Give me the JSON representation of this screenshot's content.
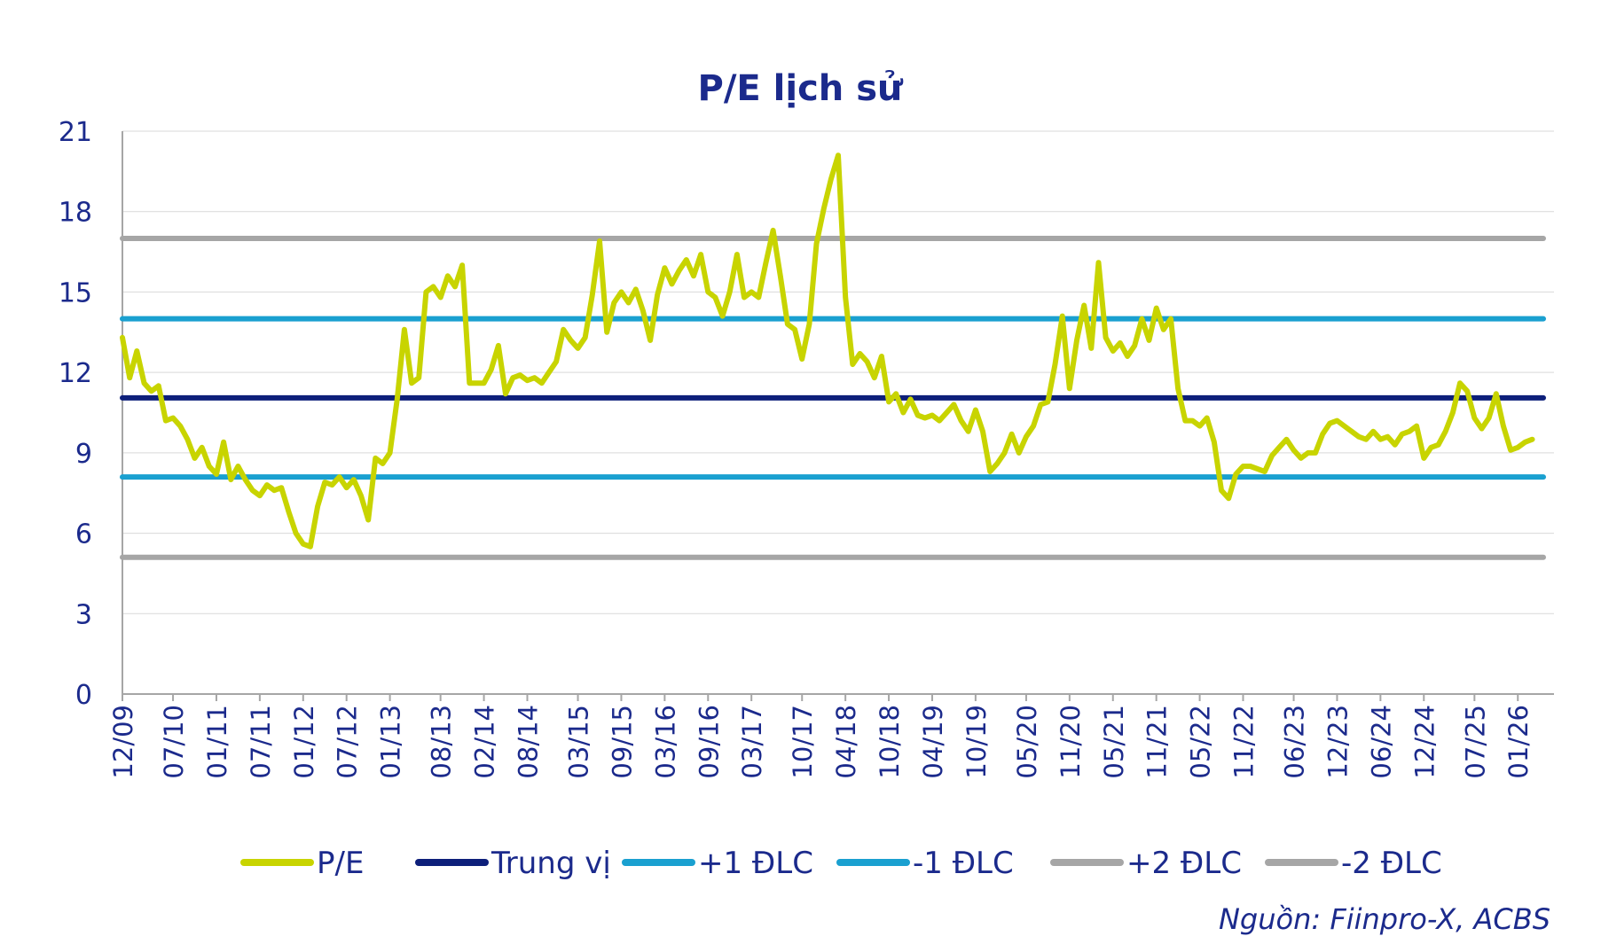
{
  "chart_data": {
    "type": "line",
    "title": "P/E lịch sử",
    "source": "Nguồn: Fiinpro-X, ACBS",
    "ylim": [
      0,
      21
    ],
    "yticks": [
      0,
      3,
      6,
      9,
      12,
      15,
      18,
      21
    ],
    "xlim": [
      "2009-12",
      "2026-06"
    ],
    "xticks": [
      "12/09",
      "07/10",
      "01/11",
      "07/11",
      "01/12",
      "07/12",
      "01/13",
      "08/13",
      "02/14",
      "08/14",
      "03/15",
      "09/15",
      "03/16",
      "09/16",
      "03/17",
      "10/17",
      "04/18",
      "10/18",
      "04/19",
      "10/19",
      "05/20",
      "11/20",
      "05/21",
      "11/21",
      "05/22",
      "11/22",
      "06/23",
      "12/23",
      "06/24",
      "12/24",
      "07/25",
      "01/26"
    ],
    "grid": "horizontal",
    "legend_position": "bottom",
    "series": [
      {
        "name": "P/E",
        "color": "#c8d400",
        "points": [
          [
            "2009-12",
            13.3
          ],
          [
            "2010-01",
            11.8
          ],
          [
            "2010-02",
            12.8
          ],
          [
            "2010-03",
            11.6
          ],
          [
            "2010-04",
            11.3
          ],
          [
            "2010-05",
            11.5
          ],
          [
            "2010-06",
            10.2
          ],
          [
            "2010-07",
            10.3
          ],
          [
            "2010-08",
            10.0
          ],
          [
            "2010-09",
            9.5
          ],
          [
            "2010-10",
            8.8
          ],
          [
            "2010-11",
            9.2
          ],
          [
            "2010-12",
            8.5
          ],
          [
            "2011-01",
            8.2
          ],
          [
            "2011-02",
            9.4
          ],
          [
            "2011-03",
            8.0
          ],
          [
            "2011-04",
            8.5
          ],
          [
            "2011-05",
            8.0
          ],
          [
            "2011-06",
            7.6
          ],
          [
            "2011-07",
            7.4
          ],
          [
            "2011-08",
            7.8
          ],
          [
            "2011-09",
            7.6
          ],
          [
            "2011-10",
            7.7
          ],
          [
            "2011-11",
            6.8
          ],
          [
            "2011-12",
            6.0
          ],
          [
            "2012-01",
            5.6
          ],
          [
            "2012-02",
            5.5
          ],
          [
            "2012-03",
            7.0
          ],
          [
            "2012-04",
            7.9
          ],
          [
            "2012-05",
            7.8
          ],
          [
            "2012-06",
            8.1
          ],
          [
            "2012-07",
            7.7
          ],
          [
            "2012-08",
            8.0
          ],
          [
            "2012-09",
            7.4
          ],
          [
            "2012-10",
            6.5
          ],
          [
            "2012-11",
            8.8
          ],
          [
            "2012-12",
            8.6
          ],
          [
            "2013-01",
            9.0
          ],
          [
            "2013-02",
            11.0
          ],
          [
            "2013-03",
            13.6
          ],
          [
            "2013-04",
            11.6
          ],
          [
            "2013-05",
            11.8
          ],
          [
            "2013-06",
            15.0
          ],
          [
            "2013-07",
            15.2
          ],
          [
            "2013-08",
            14.8
          ],
          [
            "2013-09",
            15.6
          ],
          [
            "2013-10",
            15.2
          ],
          [
            "2013-11",
            16.0
          ],
          [
            "2013-12",
            11.6
          ],
          [
            "2014-01",
            11.6
          ],
          [
            "2014-02",
            11.6
          ],
          [
            "2014-03",
            12.1
          ],
          [
            "2014-04",
            13.0
          ],
          [
            "2014-05",
            11.2
          ],
          [
            "2014-06",
            11.8
          ],
          [
            "2014-07",
            11.9
          ],
          [
            "2014-08",
            11.7
          ],
          [
            "2014-09",
            11.8
          ],
          [
            "2014-10",
            11.6
          ],
          [
            "2014-11",
            12.0
          ],
          [
            "2014-12",
            12.4
          ],
          [
            "2015-01",
            13.6
          ],
          [
            "2015-02",
            13.2
          ],
          [
            "2015-03",
            12.9
          ],
          [
            "2015-04",
            13.3
          ],
          [
            "2015-05",
            14.9
          ],
          [
            "2015-06",
            16.9
          ],
          [
            "2015-07",
            13.5
          ],
          [
            "2015-08",
            14.6
          ],
          [
            "2015-09",
            15.0
          ],
          [
            "2015-10",
            14.6
          ],
          [
            "2015-11",
            15.1
          ],
          [
            "2015-12",
            14.3
          ],
          [
            "2016-01",
            13.2
          ],
          [
            "2016-02",
            14.9
          ],
          [
            "2016-03",
            15.9
          ],
          [
            "2016-04",
            15.3
          ],
          [
            "2016-05",
            15.8
          ],
          [
            "2016-06",
            16.2
          ],
          [
            "2016-07",
            15.6
          ],
          [
            "2016-08",
            16.4
          ],
          [
            "2016-09",
            15.0
          ],
          [
            "2016-10",
            14.8
          ],
          [
            "2016-11",
            14.1
          ],
          [
            "2016-12",
            15.0
          ],
          [
            "2017-01",
            16.4
          ],
          [
            "2017-02",
            14.8
          ],
          [
            "2017-03",
            15.0
          ],
          [
            "2017-04",
            14.8
          ],
          [
            "2017-05",
            16.1
          ],
          [
            "2017-06",
            17.3
          ],
          [
            "2017-07",
            15.6
          ],
          [
            "2017-08",
            13.8
          ],
          [
            "2017-09",
            13.6
          ],
          [
            "2017-10",
            12.5
          ],
          [
            "2017-11",
            13.8
          ],
          [
            "2017-12",
            16.8
          ],
          [
            "2018-01",
            18.1
          ],
          [
            "2018-02",
            19.2
          ],
          [
            "2018-03",
            20.1
          ],
          [
            "2018-04",
            14.8
          ],
          [
            "2018-05",
            12.3
          ],
          [
            "2018-06",
            12.7
          ],
          [
            "2018-07",
            12.4
          ],
          [
            "2018-08",
            11.8
          ],
          [
            "2018-09",
            12.6
          ],
          [
            "2018-10",
            10.9
          ],
          [
            "2018-11",
            11.2
          ],
          [
            "2018-12",
            10.5
          ],
          [
            "2019-01",
            11.0
          ],
          [
            "2019-02",
            10.4
          ],
          [
            "2019-03",
            10.3
          ],
          [
            "2019-04",
            10.4
          ],
          [
            "2019-05",
            10.2
          ],
          [
            "2019-06",
            10.5
          ],
          [
            "2019-07",
            10.8
          ],
          [
            "2019-08",
            10.2
          ],
          [
            "2019-09",
            9.8
          ],
          [
            "2019-10",
            10.6
          ],
          [
            "2019-11",
            9.8
          ],
          [
            "2019-12",
            8.3
          ],
          [
            "2020-01",
            8.6
          ],
          [
            "2020-02",
            9.0
          ],
          [
            "2020-03",
            9.7
          ],
          [
            "2020-04",
            9.0
          ],
          [
            "2020-05",
            9.6
          ],
          [
            "2020-06",
            10.0
          ],
          [
            "2020-07",
            10.8
          ],
          [
            "2020-08",
            10.9
          ],
          [
            "2020-09",
            12.3
          ],
          [
            "2020-10",
            14.1
          ],
          [
            "2020-11",
            11.4
          ],
          [
            "2020-12",
            13.2
          ],
          [
            "2021-01",
            14.5
          ],
          [
            "2021-02",
            12.9
          ],
          [
            "2021-03",
            16.1
          ],
          [
            "2021-04",
            13.3
          ],
          [
            "2021-05",
            12.8
          ],
          [
            "2021-06",
            13.1
          ],
          [
            "2021-07",
            12.6
          ],
          [
            "2021-08",
            13.0
          ],
          [
            "2021-09",
            14.0
          ],
          [
            "2021-10",
            13.2
          ],
          [
            "2021-11",
            14.4
          ],
          [
            "2021-12",
            13.6
          ],
          [
            "2022-01",
            14.0
          ],
          [
            "2022-02",
            11.4
          ],
          [
            "2022-03",
            10.2
          ],
          [
            "2022-04",
            10.2
          ],
          [
            "2022-05",
            10.0
          ],
          [
            "2022-06",
            10.3
          ],
          [
            "2022-07",
            9.4
          ],
          [
            "2022-08",
            7.6
          ],
          [
            "2022-09",
            7.3
          ],
          [
            "2022-10",
            8.2
          ],
          [
            "2022-11",
            8.5
          ],
          [
            "2022-12",
            8.5
          ],
          [
            "2023-01",
            8.4
          ],
          [
            "2023-02",
            8.3
          ],
          [
            "2023-03",
            8.9
          ],
          [
            "2023-04",
            9.2
          ],
          [
            "2023-05",
            9.5
          ],
          [
            "2023-06",
            9.1
          ],
          [
            "2023-07",
            8.8
          ],
          [
            "2023-08",
            9.0
          ],
          [
            "2023-09",
            9.0
          ],
          [
            "2023-10",
            9.7
          ],
          [
            "2023-11",
            10.1
          ],
          [
            "2023-12",
            10.2
          ],
          [
            "2024-01",
            10.0
          ],
          [
            "2024-02",
            9.8
          ],
          [
            "2024-03",
            9.6
          ],
          [
            "2024-04",
            9.5
          ],
          [
            "2024-05",
            9.8
          ],
          [
            "2024-06",
            9.5
          ],
          [
            "2024-07",
            9.6
          ],
          [
            "2024-08",
            9.3
          ],
          [
            "2024-09",
            9.7
          ],
          [
            "2024-10",
            9.8
          ],
          [
            "2024-11",
            10.0
          ],
          [
            "2024-12",
            8.8
          ],
          [
            "2025-01",
            9.2
          ],
          [
            "2025-02",
            9.3
          ],
          [
            "2025-03",
            9.8
          ],
          [
            "2025-04",
            10.5
          ],
          [
            "2025-05",
            11.6
          ],
          [
            "2025-06",
            11.3
          ],
          [
            "2025-07",
            10.3
          ],
          [
            "2025-08",
            9.9
          ],
          [
            "2025-09",
            10.3
          ],
          [
            "2025-10",
            11.2
          ],
          [
            "2025-11",
            10.0
          ],
          [
            "2025-12",
            9.1
          ],
          [
            "2026-01",
            9.2
          ],
          [
            "2026-02",
            9.4
          ],
          [
            "2026-03",
            9.5
          ]
        ]
      },
      {
        "name": "Trung vị",
        "color": "#0d1f7a",
        "value": 11.05
      },
      {
        "name": "+1 ĐLC",
        "color": "#1aa0d0",
        "value": 14.0
      },
      {
        "name": "-1 ĐLC",
        "color": "#1aa0d0",
        "value": 8.1
      },
      {
        "name": "+2 ĐLC",
        "color": "#a6a6a6",
        "value": 17.0
      },
      {
        "name": "-2 ĐLC",
        "color": "#a6a6a6",
        "value": 5.1
      }
    ]
  }
}
